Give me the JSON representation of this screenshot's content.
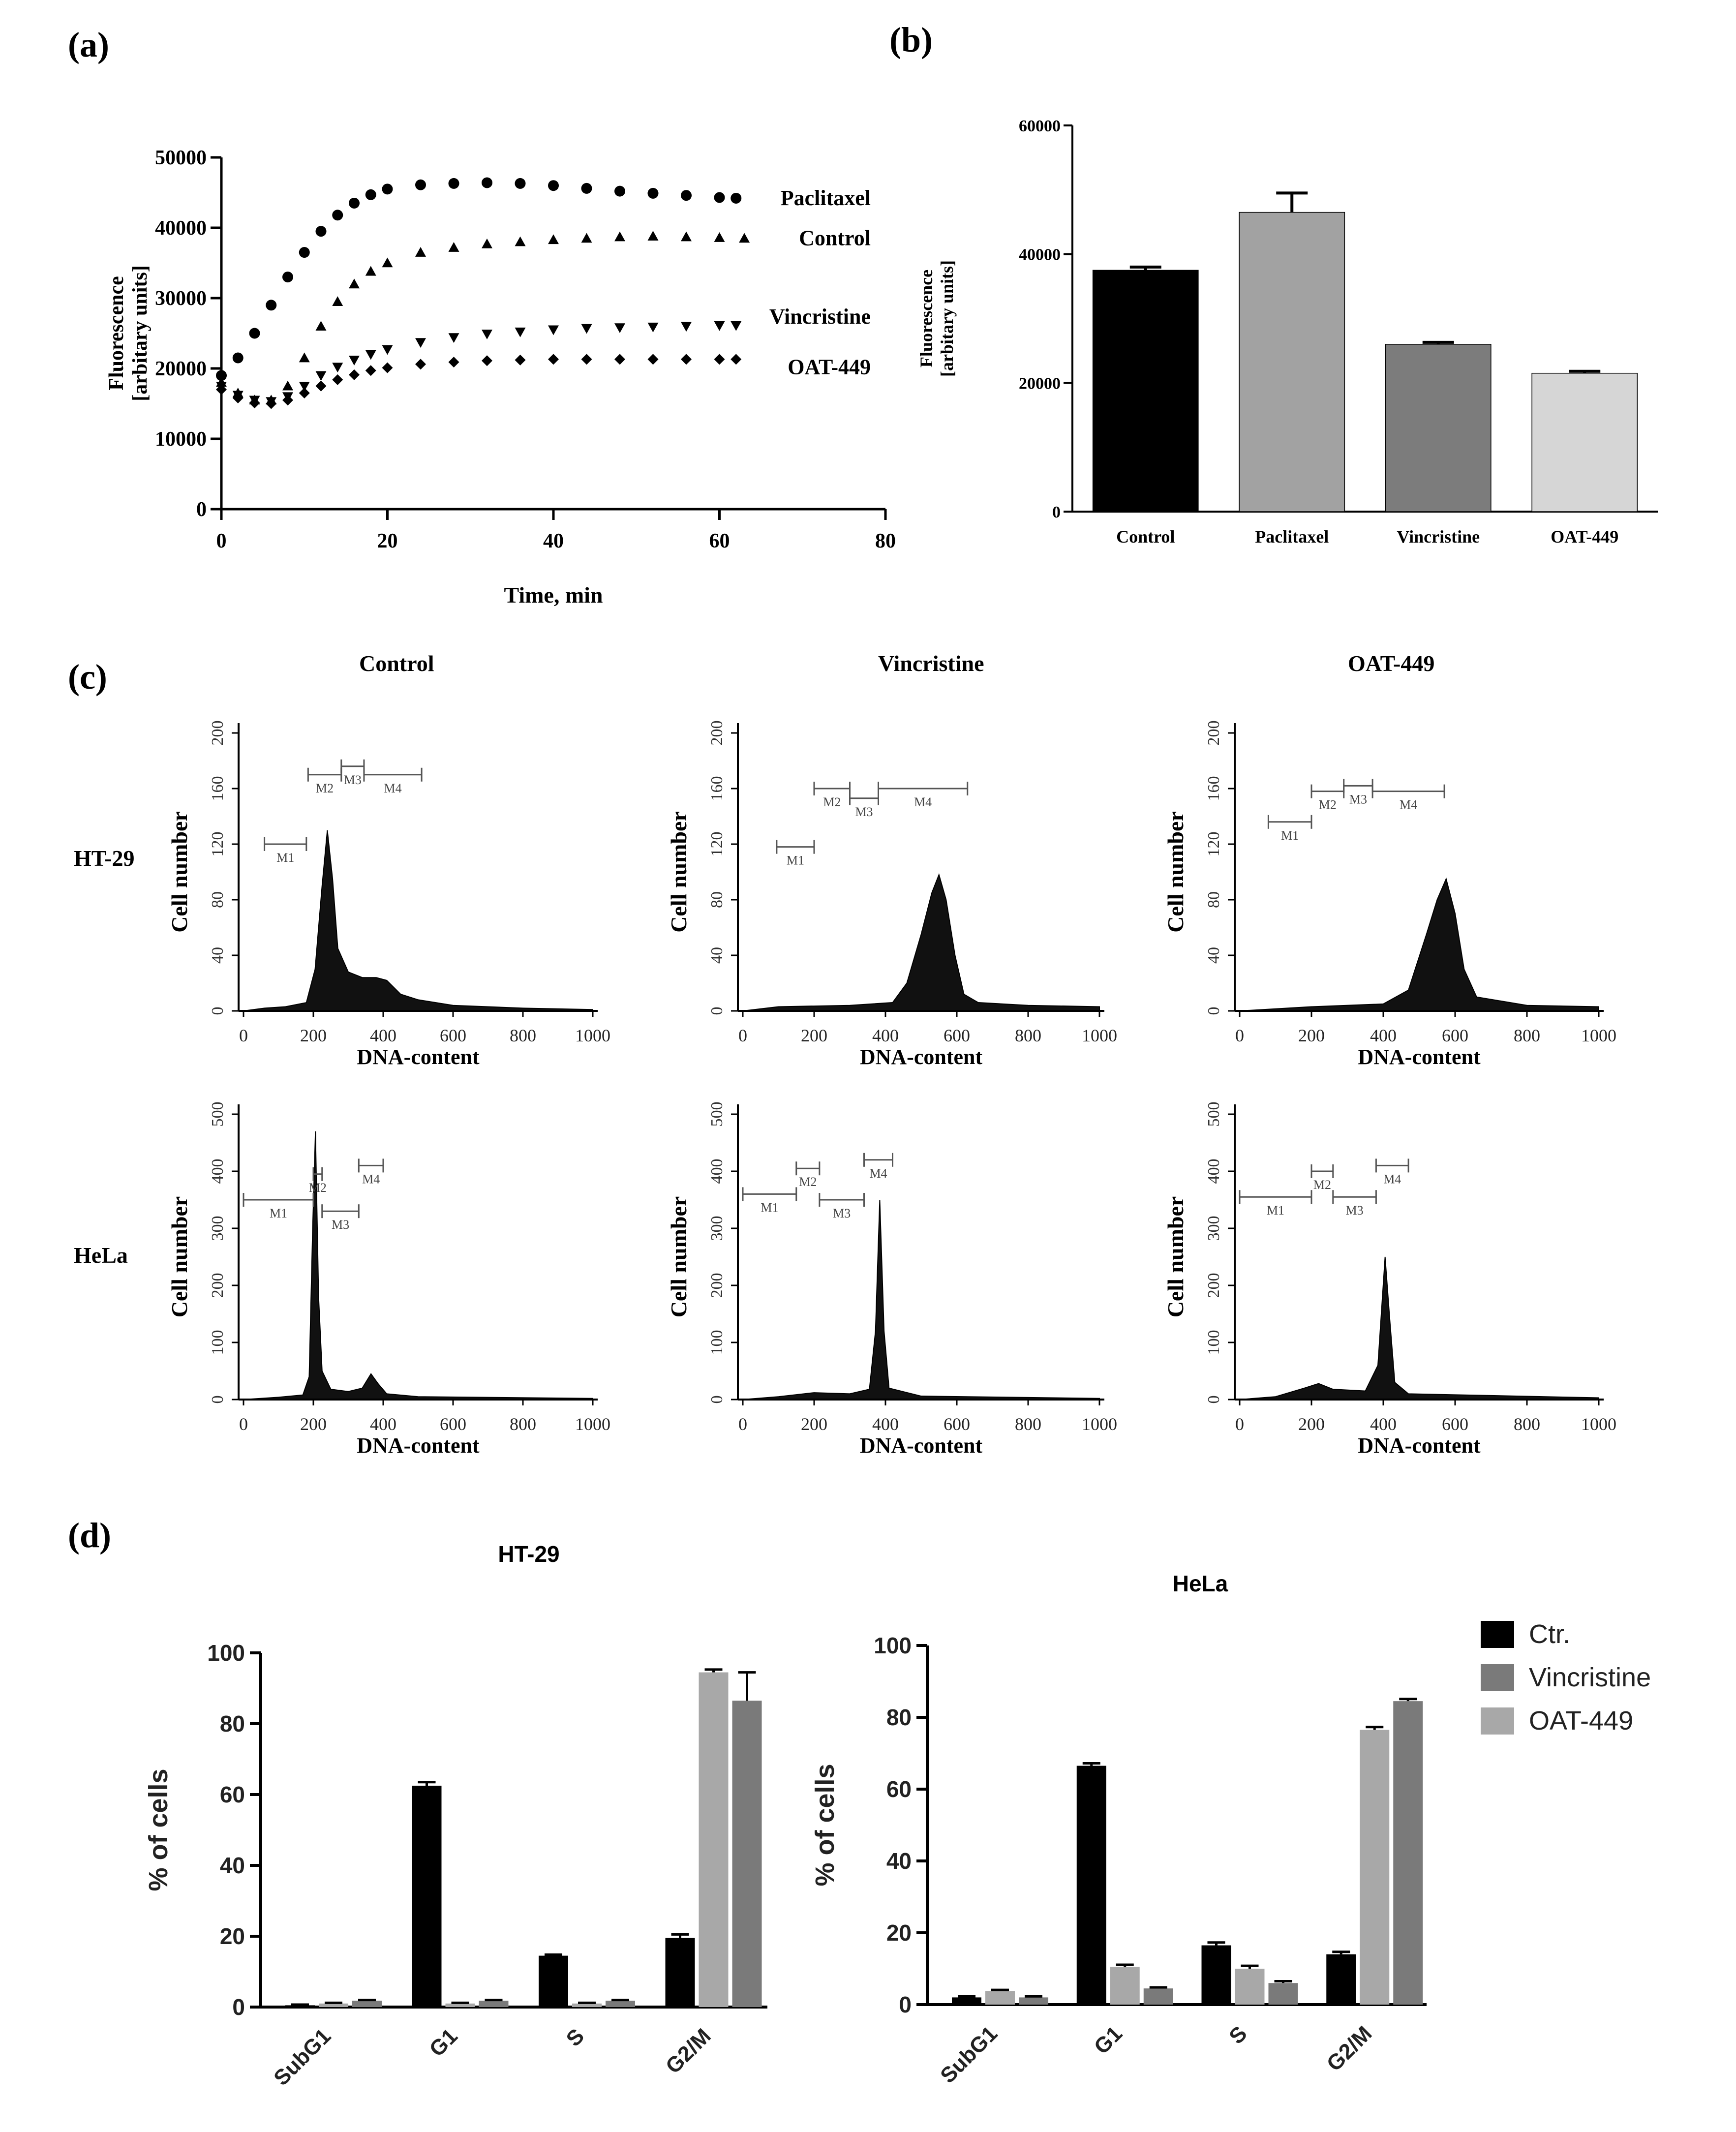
{
  "panel_labels": {
    "a": "(a)",
    "b": "(b)",
    "c": "(c)",
    "d": "(d)"
  },
  "panel_c_headers": [
    "Control",
    "Vincristine",
    "OAT-449"
  ],
  "panel_c_rows": [
    "HT-29",
    "HeLa"
  ],
  "chart_data": [
    {
      "id": "a",
      "type": "scatter",
      "title": "",
      "xlabel": "Time, min",
      "ylabel": "Fluorescence\n[arbitary units]",
      "ylabel_lines": [
        "Fluorescence",
        "[arbitary units]"
      ],
      "xlim": [
        0,
        80
      ],
      "ylim": [
        0,
        50000
      ],
      "xticks": [
        "0",
        "20",
        "40",
        "60",
        "80"
      ],
      "yticks": [
        "0",
        "10000",
        "20000",
        "30000",
        "40000",
        "50000"
      ],
      "series": [
        {
          "name": "Paclitaxel",
          "marker": "circle",
          "x": [
            0,
            2,
            4,
            6,
            8,
            10,
            12,
            14,
            16,
            18,
            20,
            24,
            28,
            32,
            36,
            40,
            44,
            48,
            52,
            56,
            60,
            62
          ],
          "y": [
            19000,
            21500,
            25000,
            29000,
            33000,
            36500,
            39500,
            41800,
            43500,
            44700,
            45500,
            46100,
            46300,
            46400,
            46300,
            46000,
            45600,
            45200,
            44900,
            44600,
            44300,
            44200
          ]
        },
        {
          "name": "Control",
          "marker": "triangle-up",
          "x": [
            0,
            2,
            4,
            6,
            8,
            10,
            12,
            14,
            16,
            18,
            20,
            24,
            28,
            32,
            36,
            40,
            44,
            48,
            52,
            56,
            60,
            63
          ],
          "y": [
            18000,
            16500,
            15500,
            15500,
            17500,
            21500,
            26000,
            29500,
            32000,
            33800,
            35000,
            36500,
            37200,
            37700,
            38000,
            38300,
            38500,
            38700,
            38800,
            38700,
            38600,
            38500
          ]
        },
        {
          "name": "Vincristine",
          "marker": "triangle-down",
          "x": [
            0,
            2,
            4,
            6,
            8,
            10,
            12,
            14,
            16,
            18,
            20,
            24,
            28,
            32,
            36,
            40,
            44,
            48,
            52,
            56,
            60,
            62
          ],
          "y": [
            17500,
            16200,
            15500,
            15300,
            16000,
            17500,
            19000,
            20200,
            21200,
            22000,
            22700,
            23700,
            24400,
            24900,
            25200,
            25500,
            25700,
            25800,
            25900,
            26000,
            26100,
            26100
          ]
        },
        {
          "name": "OAT-449",
          "marker": "diamond",
          "x": [
            0,
            2,
            4,
            6,
            8,
            10,
            12,
            14,
            16,
            18,
            20,
            24,
            28,
            32,
            36,
            40,
            44,
            48,
            52,
            56,
            60,
            62
          ],
          "y": [
            17000,
            15800,
            15100,
            15000,
            15500,
            16500,
            17500,
            18400,
            19100,
            19700,
            20100,
            20600,
            20900,
            21100,
            21200,
            21300,
            21300,
            21300,
            21300,
            21300,
            21300,
            21300
          ]
        }
      ]
    },
    {
      "id": "b",
      "type": "bar",
      "title": "",
      "ylabel": "Fluorescence\n[arbitary units]",
      "ylabel_lines": [
        "Fluorescence",
        "[arbitary units]"
      ],
      "categories": [
        "Control",
        "Paclitaxel",
        "Vincristine",
        "OAT-449"
      ],
      "values": [
        37500,
        46500,
        26000,
        21500
      ],
      "errors": [
        500,
        3000,
        300,
        300
      ],
      "colors": [
        "#000000",
        "#a2a2a2",
        "#7c7c7c",
        "#d6d6d6"
      ],
      "ylim": [
        0,
        60000
      ],
      "yticks": [
        "0",
        "20000",
        "40000",
        "60000"
      ]
    },
    {
      "id": "c",
      "type": "histogram",
      "xlabel": "DNA-content",
      "ylabel": "Cell number",
      "xticks": [
        "0",
        "200",
        "400",
        "600",
        "800",
        "1000"
      ],
      "plots": [
        {
          "row": "HT-29",
          "col": "Control",
          "yticks": [
            "0",
            "40",
            "80",
            "120",
            "160",
            "200"
          ],
          "ymax": 200,
          "profile": [
            [
              0,
              0
            ],
            [
              60,
              2
            ],
            [
              120,
              3
            ],
            [
              180,
              6
            ],
            [
              205,
              30
            ],
            [
              225,
              90
            ],
            [
              240,
              130
            ],
            [
              255,
              95
            ],
            [
              270,
              45
            ],
            [
              300,
              28
            ],
            [
              340,
              24
            ],
            [
              380,
              24
            ],
            [
              410,
              22
            ],
            [
              450,
              12
            ],
            [
              500,
              8
            ],
            [
              600,
              4
            ],
            [
              800,
              2
            ],
            [
              1000,
              1
            ]
          ],
          "markers": [
            {
              "label": "M1",
              "x1": 60,
              "x2": 180,
              "y": 120
            },
            {
              "label": "M2",
              "x1": 185,
              "x2": 280,
              "y": 170
            },
            {
              "label": "M3",
              "x1": 280,
              "x2": 345,
              "y": 176
            },
            {
              "label": "M4",
              "x1": 345,
              "x2": 510,
              "y": 170
            }
          ]
        },
        {
          "row": "HT-29",
          "col": "Vincristine",
          "yticks": [
            "0",
            "40",
            "80",
            "120",
            "160",
            "200"
          ],
          "ymax": 200,
          "profile": [
            [
              0,
              0
            ],
            [
              100,
              3
            ],
            [
              300,
              4
            ],
            [
              420,
              6
            ],
            [
              460,
              20
            ],
            [
              500,
              55
            ],
            [
              530,
              85
            ],
            [
              550,
              98
            ],
            [
              570,
              80
            ],
            [
              595,
              40
            ],
            [
              620,
              12
            ],
            [
              660,
              6
            ],
            [
              800,
              4
            ],
            [
              1000,
              3
            ]
          ],
          "markers": [
            {
              "label": "M1",
              "x1": 95,
              "x2": 200,
              "y": 118
            },
            {
              "label": "M2",
              "x1": 200,
              "x2": 300,
              "y": 160
            },
            {
              "label": "M3",
              "x1": 300,
              "x2": 380,
              "y": 153
            },
            {
              "label": "M4",
              "x1": 380,
              "x2": 630,
              "y": 160
            }
          ]
        },
        {
          "row": "HT-29",
          "col": "OAT-449",
          "yticks": [
            "0",
            "40",
            "80",
            "120",
            "160",
            "200"
          ],
          "ymax": 200,
          "profile": [
            [
              0,
              0
            ],
            [
              200,
              3
            ],
            [
              400,
              5
            ],
            [
              470,
              15
            ],
            [
              520,
              55
            ],
            [
              550,
              80
            ],
            [
              575,
              95
            ],
            [
              600,
              70
            ],
            [
              625,
              30
            ],
            [
              660,
              10
            ],
            [
              800,
              4
            ],
            [
              1000,
              3
            ]
          ],
          "markers": [
            {
              "label": "M1",
              "x1": 80,
              "x2": 200,
              "y": 136
            },
            {
              "label": "M2",
              "x1": 200,
              "x2": 290,
              "y": 158
            },
            {
              "label": "M3",
              "x1": 290,
              "x2": 370,
              "y": 162
            },
            {
              "label": "M4",
              "x1": 370,
              "x2": 570,
              "y": 158
            }
          ]
        },
        {
          "row": "HeLa",
          "col": "Control",
          "yticks": [
            "0",
            "100",
            "200",
            "300",
            "400",
            "500"
          ],
          "ymax": 500,
          "profile": [
            [
              0,
              0
            ],
            [
              100,
              4
            ],
            [
              170,
              8
            ],
            [
              188,
              40
            ],
            [
              198,
              300
            ],
            [
              206,
              470
            ],
            [
              215,
              180
            ],
            [
              225,
              50
            ],
            [
              250,
              18
            ],
            [
              300,
              14
            ],
            [
              340,
              20
            ],
            [
              365,
              45
            ],
            [
              385,
              28
            ],
            [
              410,
              10
            ],
            [
              500,
              5
            ],
            [
              1000,
              2
            ]
          ],
          "markers": [
            {
              "label": "M1",
              "x1": 0,
              "x2": 200,
              "y": 350
            },
            {
              "label": "M2",
              "x1": 200,
              "x2": 225,
              "y": 395
            },
            {
              "label": "M3",
              "x1": 225,
              "x2": 330,
              "y": 330
            },
            {
              "label": "M4",
              "x1": 330,
              "x2": 400,
              "y": 410
            }
          ]
        },
        {
          "row": "HeLa",
          "col": "Vincristine",
          "yticks": [
            "0",
            "100",
            "200",
            "300",
            "400",
            "500"
          ],
          "ymax": 500,
          "profile": [
            [
              0,
              0
            ],
            [
              100,
              5
            ],
            [
              200,
              12
            ],
            [
              300,
              10
            ],
            [
              355,
              18
            ],
            [
              372,
              120
            ],
            [
              384,
              350
            ],
            [
              396,
              120
            ],
            [
              410,
              20
            ],
            [
              500,
              6
            ],
            [
              1000,
              2
            ]
          ],
          "markers": [
            {
              "label": "M1",
              "x1": 0,
              "x2": 150,
              "y": 360
            },
            {
              "label": "M2",
              "x1": 150,
              "x2": 215,
              "y": 405
            },
            {
              "label": "M3",
              "x1": 215,
              "x2": 340,
              "y": 350
            },
            {
              "label": "M4",
              "x1": 340,
              "x2": 420,
              "y": 420
            }
          ]
        },
        {
          "row": "HeLa",
          "col": "OAT-449",
          "yticks": [
            "0",
            "100",
            "200",
            "300",
            "400",
            "500"
          ],
          "ymax": 500,
          "profile": [
            [
              0,
              0
            ],
            [
              100,
              5
            ],
            [
              180,
              20
            ],
            [
              220,
              28
            ],
            [
              260,
              18
            ],
            [
              350,
              15
            ],
            [
              385,
              60
            ],
            [
              405,
              250
            ],
            [
              418,
              140
            ],
            [
              432,
              30
            ],
            [
              470,
              10
            ],
            [
              1000,
              3
            ]
          ],
          "markers": [
            {
              "label": "M1",
              "x1": 0,
              "x2": 200,
              "y": 355
            },
            {
              "label": "M2",
              "x1": 200,
              "x2": 260,
              "y": 400
            },
            {
              "label": "M3",
              "x1": 260,
              "x2": 380,
              "y": 355
            },
            {
              "label": "M4",
              "x1": 380,
              "x2": 470,
              "y": 410
            }
          ]
        }
      ]
    },
    {
      "id": "d-ht29",
      "type": "bar",
      "title": "HT-29",
      "ylabel": "% of cells",
      "ylim": [
        0,
        100
      ],
      "yticks": [
        "0",
        "20",
        "40",
        "60",
        "80",
        "100"
      ],
      "categories": [
        "SubG1",
        "G1",
        "S",
        "G2/M"
      ],
      "series": [
        {
          "name": "Ctr.",
          "color": "#000000",
          "values": [
            0.5,
            62.5,
            14.5,
            19.5
          ],
          "errors": [
            0.2,
            1.0,
            0.3,
            1.0
          ]
        },
        {
          "name": "OAT-449",
          "color": "#a8a8a8",
          "values": [
            1.0,
            1.0,
            1.0,
            94.5
          ],
          "errors": [
            0.2,
            0.2,
            0.2,
            0.8
          ]
        },
        {
          "name": "Vincristine",
          "color": "#7a7a7a",
          "values": [
            1.8,
            1.8,
            1.8,
            86.5
          ],
          "errors": [
            0.2,
            0.2,
            0.2,
            8.0
          ]
        }
      ]
    },
    {
      "id": "d-hela",
      "type": "bar",
      "title": "HeLa",
      "ylabel": "% of cells",
      "ylim": [
        0,
        100
      ],
      "yticks": [
        "0",
        "20",
        "40",
        "60",
        "80",
        "100"
      ],
      "categories": [
        "SubG1",
        "G1",
        "S",
        "G2/M"
      ],
      "series": [
        {
          "name": "Ctr.",
          "color": "#000000",
          "values": [
            2.0,
            66.5,
            16.5,
            14.0
          ],
          "errors": [
            0.3,
            0.7,
            0.8,
            0.7
          ]
        },
        {
          "name": "OAT-449",
          "color": "#a8a8a8",
          "values": [
            3.8,
            10.5,
            10.0,
            76.5
          ],
          "errors": [
            0.3,
            0.6,
            0.8,
            0.8
          ]
        },
        {
          "name": "Vincristine",
          "color": "#7a7a7a",
          "values": [
            2.0,
            4.5,
            6.0,
            84.5
          ],
          "errors": [
            0.3,
            0.3,
            0.5,
            0.6
          ]
        }
      ],
      "legend": {
        "position": "right",
        "entries": [
          "Ctr.",
          "Vincristine",
          "OAT-449"
        ],
        "colors": [
          "#000000",
          "#7a7a7a",
          "#a8a8a8"
        ]
      }
    }
  ]
}
